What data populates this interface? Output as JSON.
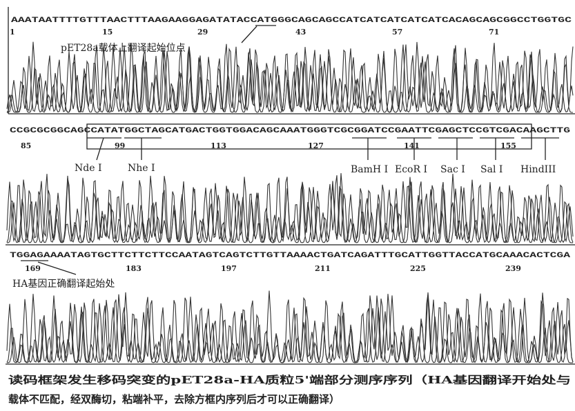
{
  "panels": [
    {
      "sequence": "AAATAATTTTGTTTAACTTTAAGAAGGAGATATACCATGGGCAGCAGCCATCATCATCATCATCACAGCAGCGGCCTGGTGC",
      "positions": [
        "1",
        "15",
        "29",
        "43",
        "57",
        "71"
      ],
      "labels": [
        "pET28a载体上翻译起始位点"
      ]
    },
    {
      "sequence": "CCGCGCGGCAGCCATATGGCTAGCATGACTGGTGGACAGCAAATGGGTCGCGGATCCGAATTCGAGCTCCGTCGACAAGCTTG",
      "positions": [
        "85",
        "99",
        "113",
        "127",
        "141",
        "155"
      ],
      "labels": [
        "Nde Ⅰ",
        "Nhe Ⅰ",
        "BamH Ⅰ",
        "EcoR Ⅰ",
        "Sac Ⅰ",
        "Sal Ⅰ",
        "HindIII"
      ]
    },
    {
      "sequence": "TGGAGAAAATAGTGCTTCTTCTTCCAATAGTCAGTCTTGTTAAAACTGATCAGATTTGCATTGGTTACCATGCAAACACTCGA",
      "positions": [
        "169",
        "183",
        "197",
        "211",
        "225",
        "239"
      ],
      "labels": [
        "HA基因正确翻译起始处"
      ]
    }
  ],
  "caption": [
    "读码框架发生移码突变的pET28a-HA质粒5'端部分测序序列（HA基因翻译开始处与",
    "载体不匹配，经双酶切，粘端补平，去除方框内序列后才可以正确翻译）"
  ]
}
